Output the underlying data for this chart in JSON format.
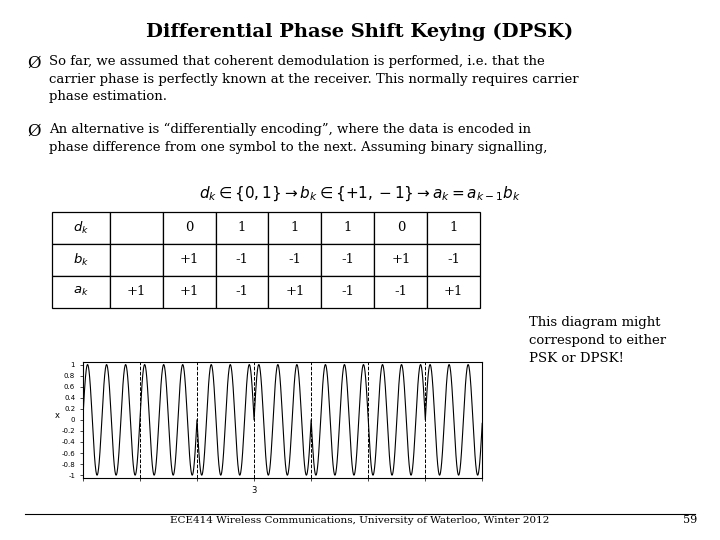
{
  "title": "Differential Phase Shift Keying (DPSK)",
  "white": "#ffffff",
  "black": "#000000",
  "para1_bullet": "Ø",
  "para1_text": "So far, we assumed that coherent demodulation is performed, i.e. that the\ncarrier phase is perfectly known at the receiver. This normally requires carrier\nphase estimation.",
  "para2_bullet": "Ø",
  "para2_text": "An alternative is “differentially encoding”, where the data is encoded in\nphase difference from one symbol to the next. Assuming binary signalling,",
  "formula": "$d_k \\in \\{0,1\\} \\rightarrow b_k \\in \\{+1,-1\\} \\rightarrow a_k = a_{k-1}b_k$",
  "row_labels": [
    "$d_k$",
    "$b_k$",
    "$a_k$"
  ],
  "table_data": [
    [
      "",
      "0",
      "1",
      "1",
      "1",
      "0",
      "1"
    ],
    [
      "",
      "+1",
      "-1",
      "-1",
      "-1",
      "+1",
      "-1"
    ],
    [
      "+1",
      "+1",
      "-1",
      "+1",
      "-1",
      "-1",
      "+1"
    ]
  ],
  "a_k": [
    1,
    1,
    -1,
    1,
    -1,
    -1,
    1
  ],
  "num_cycles_per_symbol": 3,
  "diagram_note": "This diagram might\ncorrespond to either\nPSK or DPSK!",
  "footer": "ECE414 Wireless Communications, University of Waterloo, Winter 2012",
  "footer_page": "59"
}
